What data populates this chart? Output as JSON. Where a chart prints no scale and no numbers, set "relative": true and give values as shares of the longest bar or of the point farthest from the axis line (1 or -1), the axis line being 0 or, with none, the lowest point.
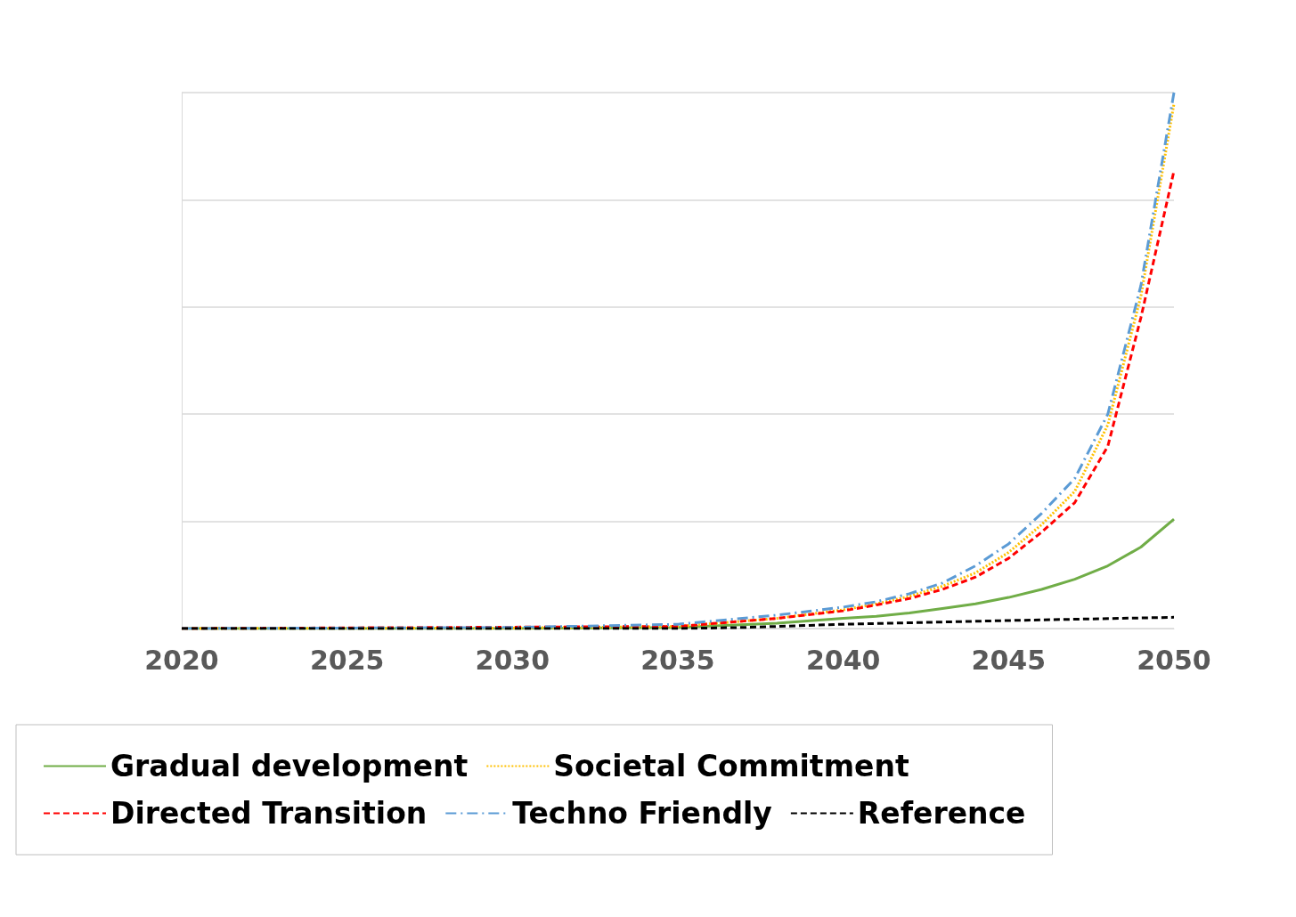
{
  "chart_data": {
    "type": "line",
    "relative": true,
    "xlim": [
      2020,
      2050
    ],
    "xticks": [
      2020,
      2025,
      2030,
      2035,
      2040,
      2045,
      2050
    ],
    "grid": "y",
    "legend": "bottom",
    "marker": "none",
    "series": [
      {
        "name": "Gradual development",
        "color": "#70ad47",
        "line_style": "solid",
        "x": [
          2020,
          2030,
          2035,
          2038,
          2040,
          2041,
          2042,
          2043,
          2044,
          2045,
          2046,
          2047,
          2048,
          2049,
          2050
        ],
        "values": [
          0,
          0,
          0.002,
          0.01,
          0.019,
          0.023,
          0.029,
          0.0375,
          0.046,
          0.058,
          0.073,
          0.092,
          0.117,
          0.152,
          0.204
        ]
      },
      {
        "name": "Societal Commitment",
        "color": "#ffc000",
        "line_style": "dotted",
        "x": [
          2020,
          2030,
          2035,
          2038,
          2040,
          2041,
          2042,
          2043,
          2044,
          2045,
          2046,
          2047,
          2048,
          2049,
          2050
        ],
        "values": [
          0,
          0.001,
          0.004,
          0.019,
          0.035,
          0.046,
          0.06,
          0.079,
          0.104,
          0.142,
          0.194,
          0.256,
          0.38,
          0.62,
          0.979
        ]
      },
      {
        "name": "Directed Transition",
        "color": "#ff0000",
        "line_style": "dashed",
        "x": [
          2020,
          2035,
          2038,
          2040,
          2041,
          2042,
          2043,
          2044,
          2045,
          2046,
          2047,
          2048,
          2049,
          2050
        ],
        "values": [
          0,
          0.004,
          0.019,
          0.033,
          0.044,
          0.056,
          0.073,
          0.096,
          0.131,
          0.18,
          0.235,
          0.34,
          0.58,
          0.854
        ]
      },
      {
        "name": "Techno Friendly",
        "color": "#5b9bd5",
        "line_style": "dashdot",
        "x": [
          2020,
          2030,
          2035,
          2038,
          2040,
          2041,
          2042,
          2043,
          2044,
          2045,
          2046,
          2047,
          2048,
          2049,
          2050
        ],
        "values": [
          0,
          0.002,
          0.008,
          0.025,
          0.04,
          0.05,
          0.065,
          0.085,
          0.117,
          0.158,
          0.215,
          0.28,
          0.4,
          0.64,
          1
        ]
      },
      {
        "name": "Reference",
        "color": "#000000",
        "line_style": "dashed",
        "x": [
          2020,
          2035,
          2037,
          2040,
          2045,
          2050
        ],
        "values": [
          0,
          0,
          0.002,
          0.008,
          0.015,
          0.021
        ]
      }
    ]
  }
}
